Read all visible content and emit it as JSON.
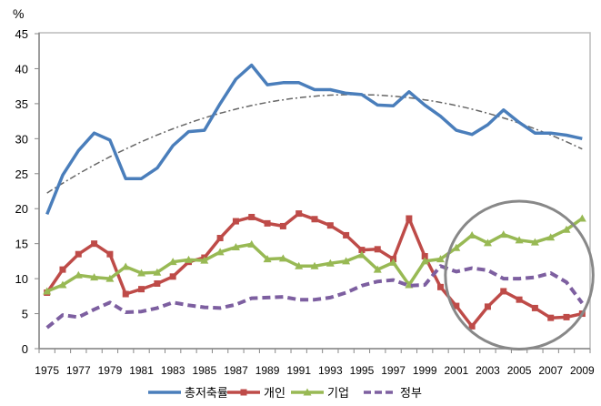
{
  "chart_data": {
    "type": "line",
    "title": "",
    "ylabel": "%",
    "xlabel": "",
    "ylim": [
      0,
      45
    ],
    "yticks": [
      0,
      5,
      10,
      15,
      20,
      25,
      30,
      35,
      40,
      45
    ],
    "grid": false,
    "legend_position": "bottom",
    "x": [
      1975,
      1976,
      1977,
      1978,
      1979,
      1980,
      1981,
      1982,
      1983,
      1984,
      1985,
      1986,
      1987,
      1988,
      1989,
      1990,
      1991,
      1992,
      1993,
      1994,
      1995,
      1996,
      1997,
      1998,
      1999,
      2000,
      2001,
      2002,
      2003,
      2004,
      2005,
      2006,
      2007,
      2008,
      2009
    ],
    "xtick_labels": [
      "1975",
      "1977",
      "1979",
      "1981",
      "1983",
      "1985",
      "1987",
      "1989",
      "1991",
      "1993",
      "1995",
      "1997",
      "1999",
      "2001",
      "2003",
      "2005",
      "2007",
      "2009"
    ],
    "series": [
      {
        "name": "총저축률",
        "color": "#4a7ebb",
        "marker": "none",
        "dash": "solid",
        "values": [
          19.2,
          24.8,
          28.3,
          30.8,
          29.8,
          24.3,
          24.3,
          25.8,
          29.0,
          31.0,
          31.2,
          35.0,
          38.5,
          40.5,
          37.7,
          38.0,
          38.0,
          37.0,
          37.0,
          36.5,
          36.3,
          34.8,
          34.7,
          36.7,
          34.8,
          33.2,
          31.2,
          30.6,
          32.0,
          34.1,
          32.3,
          30.8,
          30.8,
          30.5,
          30.0
        ]
      },
      {
        "name": "개인",
        "color": "#be4b48",
        "marker": "square",
        "dash": "solid",
        "values": [
          8.0,
          11.3,
          13.5,
          15.0,
          13.5,
          7.8,
          8.5,
          9.3,
          10.3,
          12.4,
          13.0,
          15.8,
          18.2,
          18.8,
          17.9,
          17.5,
          19.3,
          18.5,
          17.6,
          16.2,
          14.1,
          14.2,
          12.8,
          18.6,
          13.2,
          8.8,
          6.1,
          3.2,
          6.0,
          8.2,
          7.0,
          5.8,
          4.4,
          4.5,
          5.0
        ]
      },
      {
        "name": "기업",
        "color": "#98b954",
        "marker": "triangle",
        "dash": "solid",
        "values": [
          8.2,
          9.1,
          10.5,
          10.2,
          10.0,
          11.7,
          10.8,
          10.9,
          12.4,
          12.7,
          12.6,
          13.8,
          14.5,
          14.9,
          12.8,
          12.9,
          11.8,
          11.8,
          12.2,
          12.5,
          13.4,
          11.3,
          12.3,
          9.1,
          12.5,
          12.8,
          14.4,
          16.2,
          15.1,
          16.3,
          15.5,
          15.2,
          15.9,
          17.0,
          18.6
        ]
      },
      {
        "name": "정부",
        "color": "#7d5fa0",
        "marker": "none",
        "dash": "dashed",
        "values": [
          3.0,
          4.8,
          4.5,
          5.6,
          6.6,
          5.2,
          5.3,
          5.8,
          6.6,
          6.2,
          5.9,
          5.8,
          6.3,
          7.2,
          7.3,
          7.4,
          7.0,
          7.0,
          7.3,
          8.0,
          9.0,
          9.6,
          9.8,
          9.0,
          9.1,
          11.8,
          11.0,
          11.5,
          11.2,
          10.0,
          10.0,
          10.2,
          10.8,
          9.5,
          6.5
        ]
      }
    ],
    "trendline": {
      "of": "총저축률",
      "type": "polynomial-2",
      "color": "#666666",
      "peak_year": 1994.5,
      "peak_value": 36.3,
      "curvature": -0.037
    },
    "annotation": {
      "type": "circle",
      "color": "#888888",
      "center_year": 2005,
      "center_value": 10.5,
      "radius_years": 4.6
    }
  }
}
